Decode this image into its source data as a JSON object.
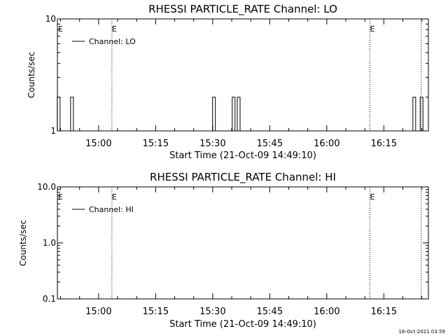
{
  "chart_data": [
    {
      "type": "line",
      "title": "RHESSI PARTICLE_RATE Channel: LO",
      "xlabel": "Start Time (21-Oct-09 14:49:10)",
      "ylabel": "Counts/sec",
      "yscale": "log",
      "ylim": [
        1,
        10
      ],
      "ytick_labels": [
        "1",
        "10"
      ],
      "xtick_labels": [
        "15:00",
        "15:15",
        "15:30",
        "15:45",
        "16:00",
        "16:15"
      ],
      "legend": {
        "label": "Channel: LO",
        "placement": "top-left"
      },
      "markers": {
        "label": "E",
        "times": [
          "15:03:30",
          "16:11:20"
        ]
      },
      "extra_dotted_line": "16:24:50",
      "series": [
        {
          "name": "Channel: LO",
          "spikes": [
            {
              "time": "14:49:30",
              "value": 2
            },
            {
              "time": "14:53:00",
              "value": 2
            },
            {
              "time": "15:30:20",
              "value": 2
            },
            {
              "time": "15:35:30",
              "value": 2
            },
            {
              "time": "15:36:50",
              "value": 2
            },
            {
              "time": "16:23:00",
              "value": 2
            },
            {
              "time": "16:24:55",
              "value": 2
            }
          ]
        }
      ]
    },
    {
      "type": "line",
      "title": "RHESSI PARTICLE_RATE Channel: HI",
      "xlabel": "Start Time (21-Oct-09 14:49:10)",
      "ylabel": "Counts/sec",
      "yscale": "log",
      "ylim": [
        0.1,
        10
      ],
      "ytick_labels": [
        "0.1",
        "1.0",
        "10.0"
      ],
      "xtick_labels": [
        "15:00",
        "15:15",
        "15:30",
        "15:45",
        "16:00",
        "16:15"
      ],
      "legend": {
        "label": "Channel: HI",
        "placement": "top-left"
      },
      "markers": {
        "label": "E",
        "times": [
          "15:03:30",
          "16:11:20"
        ]
      },
      "extra_dotted_line": "16:24:50",
      "series": [
        {
          "name": "Channel: HI",
          "spikes": []
        }
      ]
    }
  ],
  "footer_timestamp": "16-Oct-2021 03:59"
}
